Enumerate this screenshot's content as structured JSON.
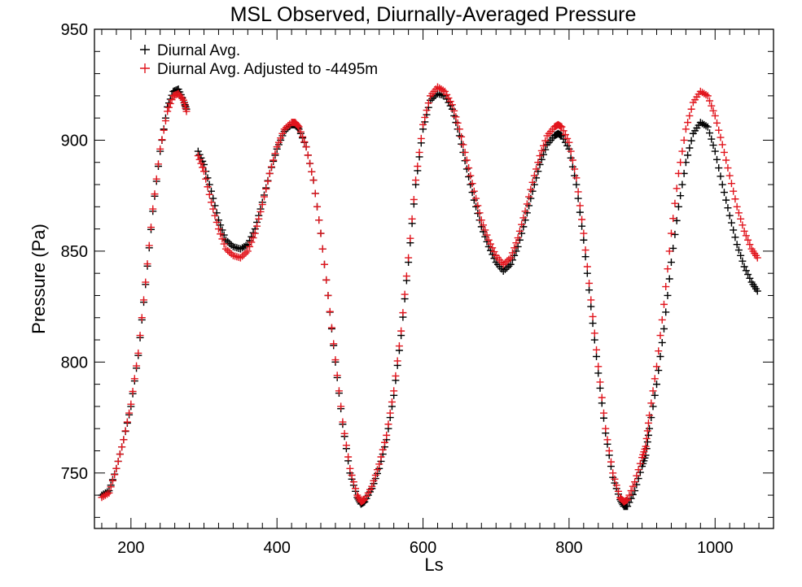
{
  "chart_data": {
    "type": "scatter",
    "title": "MSL Observed, Diurnally-Averaged Pressure",
    "xlabel": "Ls",
    "ylabel": "Pressure (Pa)",
    "xlim": [
      150,
      1080
    ],
    "ylim": [
      725,
      950
    ],
    "xticks": [
      200,
      400,
      600,
      800,
      1000
    ],
    "xtick_labels": [
      "200",
      "400",
      "600",
      "800",
      "1000"
    ],
    "yticks": [
      750,
      800,
      850,
      900,
      950
    ],
    "ytick_labels": [
      "750",
      "800",
      "850",
      "900",
      "950"
    ],
    "grid": false,
    "legend_position": "top-left",
    "marker": "+",
    "series": [
      {
        "name": "Diurnal Avg.",
        "color": "#000000",
        "points": [
          [
            160,
            740
          ],
          [
            170,
            742
          ],
          [
            180,
            752
          ],
          [
            190,
            765
          ],
          [
            200,
            780
          ],
          [
            210,
            803
          ],
          [
            220,
            835
          ],
          [
            230,
            868
          ],
          [
            240,
            895
          ],
          [
            250,
            915
          ],
          [
            258,
            922
          ],
          [
            265,
            923
          ],
          [
            272,
            918
          ],
          [
            276,
            914
          ],
          [
            292,
            895
          ],
          [
            300,
            889
          ],
          [
            310,
            877
          ],
          [
            320,
            864
          ],
          [
            330,
            855
          ],
          [
            340,
            852
          ],
          [
            350,
            851
          ],
          [
            360,
            853
          ],
          [
            370,
            860
          ],
          [
            380,
            872
          ],
          [
            390,
            885
          ],
          [
            400,
            896
          ],
          [
            410,
            904
          ],
          [
            420,
            907
          ],
          [
            425,
            907
          ],
          [
            430,
            905
          ],
          [
            440,
            897
          ],
          [
            450,
            882
          ],
          [
            460,
            858
          ],
          [
            470,
            830
          ],
          [
            480,
            800
          ],
          [
            490,
            772
          ],
          [
            500,
            750
          ],
          [
            510,
            739
          ],
          [
            515,
            736
          ],
          [
            520,
            737
          ],
          [
            530,
            743
          ],
          [
            540,
            752
          ],
          [
            550,
            765
          ],
          [
            560,
            785
          ],
          [
            570,
            812
          ],
          [
            580,
            845
          ],
          [
            590,
            880
          ],
          [
            600,
            905
          ],
          [
            610,
            918
          ],
          [
            620,
            921
          ],
          [
            630,
            920
          ],
          [
            640,
            914
          ],
          [
            650,
            902
          ],
          [
            660,
            887
          ],
          [
            670,
            873
          ],
          [
            680,
            861
          ],
          [
            690,
            852
          ],
          [
            700,
            845
          ],
          [
            710,
            841
          ],
          [
            720,
            844
          ],
          [
            730,
            852
          ],
          [
            740,
            864
          ],
          [
            750,
            877
          ],
          [
            760,
            889
          ],
          [
            770,
            898
          ],
          [
            780,
            902
          ],
          [
            785,
            903
          ],
          [
            790,
            902
          ],
          [
            800,
            896
          ],
          [
            810,
            880
          ],
          [
            820,
            855
          ],
          [
            830,
            825
          ],
          [
            840,
            795
          ],
          [
            850,
            768
          ],
          [
            860,
            748
          ],
          [
            870,
            738
          ],
          [
            875,
            735
          ],
          [
            880,
            735
          ],
          [
            890,
            742
          ],
          [
            900,
            753
          ],
          [
            905,
            758
          ],
          [
            910,
            770
          ],
          [
            920,
            790
          ],
          [
            930,
            815
          ],
          [
            940,
            845
          ],
          [
            950,
            870
          ],
          [
            960,
            890
          ],
          [
            970,
            903
          ],
          [
            980,
            908
          ],
          [
            990,
            906
          ],
          [
            1000,
            895
          ],
          [
            1010,
            880
          ],
          [
            1020,
            866
          ],
          [
            1030,
            853
          ],
          [
            1040,
            843
          ],
          [
            1050,
            836
          ],
          [
            1058,
            832
          ]
        ]
      },
      {
        "name": "Diurnal Avg. Adjusted to -4495m",
        "color": "#e1141c",
        "points": [
          [
            160,
            739
          ],
          [
            170,
            741
          ],
          [
            180,
            752
          ],
          [
            190,
            765
          ],
          [
            200,
            781
          ],
          [
            210,
            804
          ],
          [
            220,
            836
          ],
          [
            230,
            869
          ],
          [
            240,
            896
          ],
          [
            250,
            913
          ],
          [
            258,
            920
          ],
          [
            265,
            921
          ],
          [
            272,
            918
          ],
          [
            276,
            913
          ],
          [
            292,
            893
          ],
          [
            300,
            886
          ],
          [
            310,
            872
          ],
          [
            320,
            860
          ],
          [
            330,
            851
          ],
          [
            340,
            848
          ],
          [
            350,
            847
          ],
          [
            360,
            850
          ],
          [
            370,
            858
          ],
          [
            380,
            871
          ],
          [
            390,
            885
          ],
          [
            400,
            897
          ],
          [
            410,
            905
          ],
          [
            420,
            908
          ],
          [
            425,
            908
          ],
          [
            430,
            906
          ],
          [
            440,
            897
          ],
          [
            450,
            882
          ],
          [
            460,
            858
          ],
          [
            470,
            830
          ],
          [
            480,
            801
          ],
          [
            490,
            773
          ],
          [
            500,
            752
          ],
          [
            510,
            740
          ],
          [
            515,
            737
          ],
          [
            520,
            738
          ],
          [
            530,
            744
          ],
          [
            540,
            754
          ],
          [
            550,
            767
          ],
          [
            560,
            787
          ],
          [
            570,
            814
          ],
          [
            580,
            847
          ],
          [
            590,
            882
          ],
          [
            600,
            907
          ],
          [
            610,
            920
          ],
          [
            620,
            924
          ],
          [
            630,
            922
          ],
          [
            640,
            916
          ],
          [
            650,
            905
          ],
          [
            660,
            891
          ],
          [
            670,
            877
          ],
          [
            680,
            864
          ],
          [
            690,
            855
          ],
          [
            700,
            848
          ],
          [
            710,
            844
          ],
          [
            720,
            847
          ],
          [
            730,
            856
          ],
          [
            740,
            868
          ],
          [
            750,
            881
          ],
          [
            760,
            893
          ],
          [
            770,
            902
          ],
          [
            780,
            906
          ],
          [
            785,
            907
          ],
          [
            790,
            906
          ],
          [
            800,
            899
          ],
          [
            810,
            883
          ],
          [
            820,
            858
          ],
          [
            830,
            828
          ],
          [
            840,
            798
          ],
          [
            850,
            770
          ],
          [
            860,
            750
          ],
          [
            870,
            739
          ],
          [
            875,
            737
          ],
          [
            880,
            738
          ],
          [
            890,
            746
          ],
          [
            900,
            757
          ],
          [
            905,
            762
          ],
          [
            910,
            776
          ],
          [
            920,
            798
          ],
          [
            930,
            826
          ],
          [
            940,
            858
          ],
          [
            950,
            885
          ],
          [
            960,
            905
          ],
          [
            970,
            917
          ],
          [
            980,
            922
          ],
          [
            990,
            920
          ],
          [
            1000,
            911
          ],
          [
            1010,
            898
          ],
          [
            1020,
            884
          ],
          [
            1030,
            870
          ],
          [
            1040,
            859
          ],
          [
            1050,
            851
          ],
          [
            1058,
            847
          ]
        ]
      }
    ]
  }
}
